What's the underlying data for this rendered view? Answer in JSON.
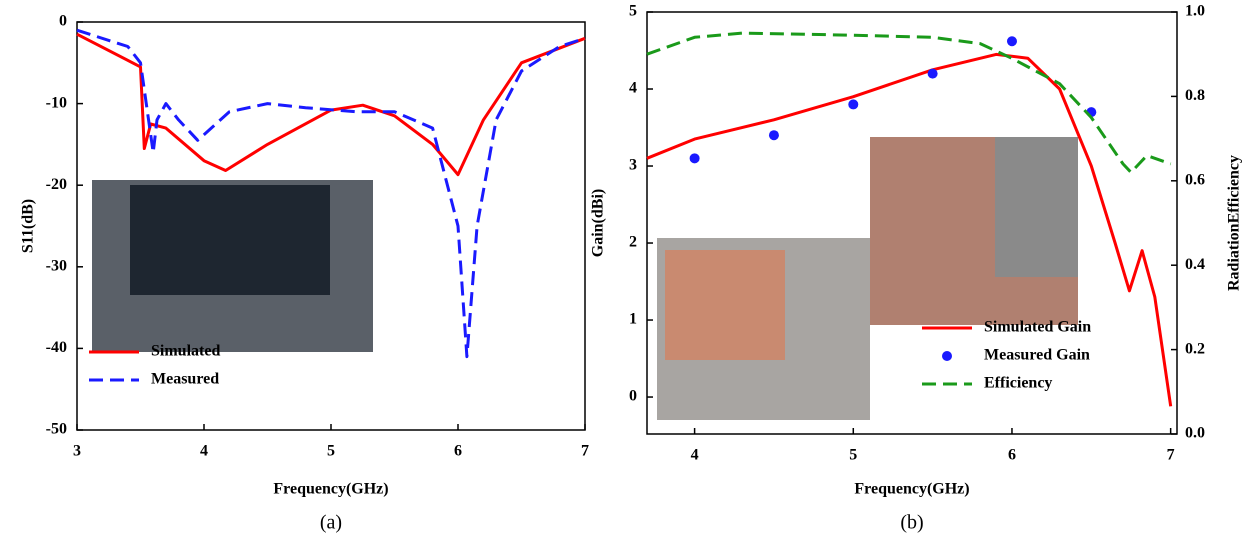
{
  "chart_data": [
    {
      "type": "line",
      "caption": "(a)",
      "xlabel": "Frequency(GHz)",
      "ylabel": "S11(dB)",
      "xlim": [
        3,
        7
      ],
      "xticks": [
        3,
        4,
        5,
        6,
        7
      ],
      "ylim": [
        -50,
        0
      ],
      "yticks": [
        -50,
        -40,
        -30,
        -20,
        -10,
        0
      ],
      "legend": "lower left",
      "series": [
        {
          "name": "Simulated",
          "color": "#ff0000",
          "style": "solid",
          "x": [
            3,
            3.5,
            3.53,
            3.58,
            3.7,
            4,
            4.17,
            4.5,
            5,
            5.25,
            5.5,
            5.8,
            6,
            6.2,
            6.5,
            7
          ],
          "values": [
            -1.5,
            -5.5,
            -15.5,
            -12.5,
            -13,
            -17,
            -18.2,
            -15,
            -10.8,
            -10.2,
            -11.5,
            -15,
            -18.7,
            -12,
            -5,
            -2
          ]
        },
        {
          "name": "Measured",
          "color": "#1a1aff",
          "style": "dashed",
          "x": [
            3,
            3.4,
            3.5,
            3.6,
            3.63,
            3.7,
            3.8,
            3.95,
            4.2,
            4.5,
            4.8,
            5.2,
            5.5,
            5.8,
            6.0,
            6.07,
            6.15,
            6.3,
            6.5,
            6.8,
            7
          ],
          "values": [
            -1,
            -3,
            -5,
            -16,
            -12,
            -10,
            -12,
            -14.5,
            -11,
            -10,
            -10.5,
            -11,
            -11,
            -13,
            -25,
            -41,
            -25,
            -12,
            -6,
            -3,
            -2
          ]
        }
      ]
    },
    {
      "type": "line",
      "caption": "(b)",
      "xlabel": "Frequency(GHz)",
      "ylabel": "Gain(dBi)",
      "y2label": "RadiationEfficiency",
      "xlim": [
        3.7,
        7.04
      ],
      "xticks": [
        4,
        5,
        6,
        7
      ],
      "ylim": [
        -0.48,
        5
      ],
      "yticks": [
        0,
        1,
        2,
        3,
        4,
        5
      ],
      "y2lim": [
        0,
        1
      ],
      "y2ticks": [
        {
          "value": 0,
          "label": "0.0"
        },
        0.2,
        0.4,
        0.6,
        0.8,
        {
          "value": 1,
          "label": "1.0"
        }
      ],
      "legend": "lower right",
      "series": [
        {
          "name": "Simulated Gain",
          "color": "#ff0000",
          "style": "solid",
          "x": [
            3.7,
            4,
            4.5,
            5,
            5.5,
            5.9,
            6.1,
            6.3,
            6.5,
            6.65,
            6.74,
            6.82,
            6.9,
            7
          ],
          "values": [
            3.1,
            3.35,
            3.6,
            3.9,
            4.25,
            4.45,
            4.4,
            4.0,
            3.0,
            2.0,
            1.38,
            1.9,
            1.3,
            -0.12
          ]
        },
        {
          "name": "Measured Gain",
          "color": "#1a1aff",
          "style": "scatter",
          "x": [
            4,
            4.5,
            5,
            5.5,
            6,
            6.5
          ],
          "values": [
            3.1,
            3.4,
            3.8,
            4.2,
            4.62,
            3.7
          ]
        },
        {
          "name": "Efficiency",
          "color": "#1a9a1a",
          "style": "dashed",
          "axis": "y2",
          "x": [
            3.7,
            4,
            4.3,
            5,
            5.5,
            5.8,
            6,
            6.3,
            6.5,
            6.7,
            6.75,
            6.85,
            7
          ],
          "values": [
            0.9,
            0.94,
            0.95,
            0.945,
            0.94,
            0.925,
            0.89,
            0.83,
            0.75,
            0.64,
            0.62,
            0.66,
            0.64
          ]
        }
      ]
    }
  ]
}
